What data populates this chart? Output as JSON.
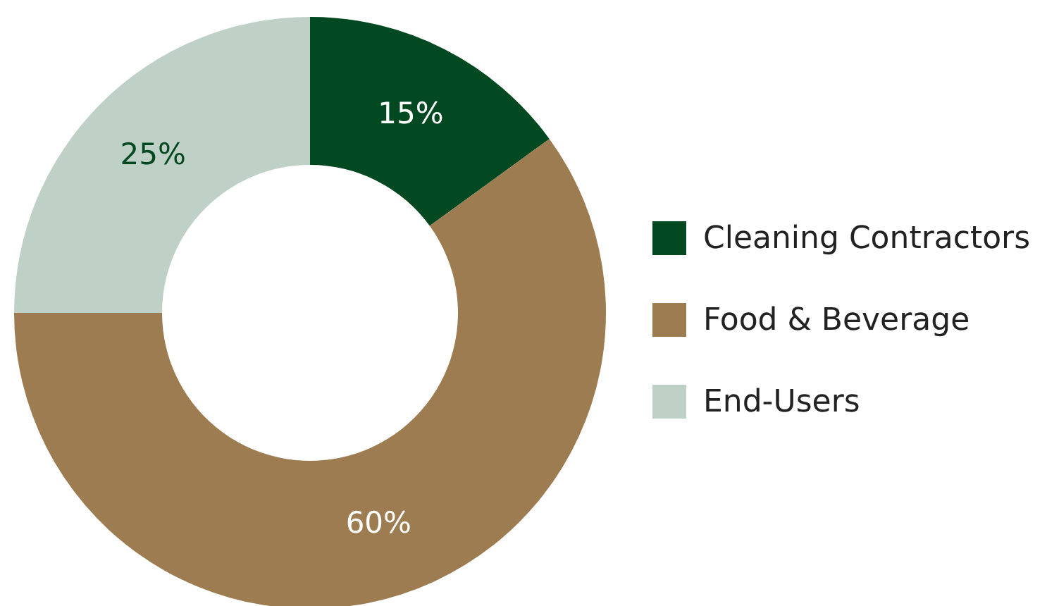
{
  "chart_data": {
    "type": "donut",
    "categories": [
      "Cleaning Contractors",
      "Food & Beverage",
      "End-Users"
    ],
    "values": [
      15,
      60,
      25
    ],
    "colors": [
      "#024820",
      "#9c7c50",
      "#bfd1c7"
    ],
    "value_labels": [
      "15%",
      "60%",
      "25%"
    ],
    "legend": "right"
  }
}
